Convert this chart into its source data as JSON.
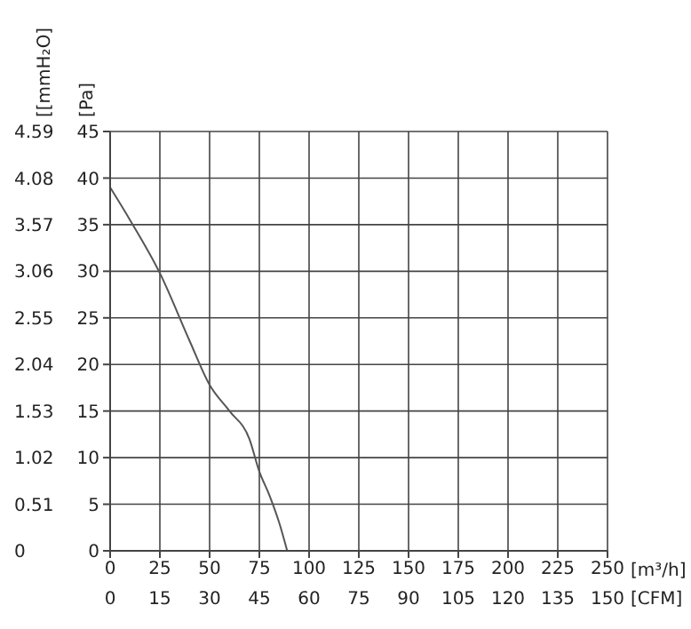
{
  "chart_data": {
    "type": "line",
    "xlabel": "[m³/h]",
    "x2label": "[CFM]",
    "ylabel": "[Pa]",
    "y2label": "[[mmH₂O]",
    "x": [
      0,
      10,
      25,
      40,
      50,
      60,
      70,
      75,
      80,
      85,
      89
    ],
    "series": [
      {
        "color": "#555555",
        "values": [
          39,
          35.5,
          29.8,
          22.5,
          17.8,
          15,
          12,
          8.5,
          6,
          3,
          0
        ]
      }
    ],
    "xlim": [
      0,
      250
    ],
    "xticks": [
      0,
      25,
      50,
      75,
      100,
      125,
      150,
      175,
      200,
      225,
      250
    ],
    "x2lim": [
      0,
      150
    ],
    "x2ticks": [
      0,
      15,
      30,
      45,
      60,
      75,
      90,
      105,
      120,
      135,
      150
    ],
    "ylim": [
      0,
      45
    ],
    "yticks": [
      0,
      5,
      10,
      15,
      20,
      25,
      30,
      35,
      40,
      45
    ],
    "y2lim": [
      0,
      4.59
    ],
    "y2ticks": [
      0,
      0.51,
      1.02,
      1.53,
      2.04,
      2.55,
      3.06,
      3.57,
      4.08,
      4.59
    ],
    "grid": true
  }
}
